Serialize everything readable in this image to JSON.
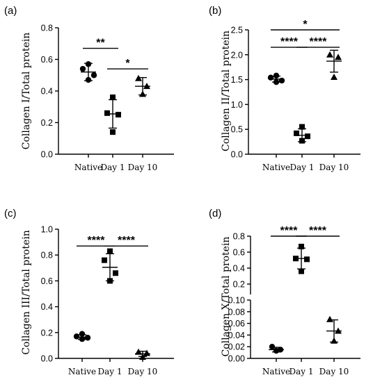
{
  "chart_data": [
    {
      "type": "scatter",
      "panel_label": "(a)",
      "ylabel": "Collagen I/Total protein",
      "categories": [
        "Native",
        "Day 1",
        "Day 10"
      ],
      "ylim": [
        0,
        0.8
      ],
      "yticks": [
        "0.0",
        "0.2",
        "0.4",
        "0.6",
        "0.8"
      ],
      "series": [
        {
          "category": "Native",
          "marker": "circle",
          "points": [
            0.57,
            0.54,
            0.5,
            0.47
          ],
          "mean": 0.52,
          "sd": 0.055
        },
        {
          "category": "Day 1",
          "marker": "square",
          "points": [
            0.36,
            0.26,
            0.25,
            0.14
          ],
          "mean": 0.255,
          "sd": 0.09
        },
        {
          "category": "Day 10",
          "marker": "triangle",
          "points": [
            0.48,
            0.43,
            0.38
          ],
          "mean": 0.43,
          "sd": 0.055
        }
      ],
      "significance": [
        {
          "from": "Native",
          "to": "Day 1",
          "label": "**",
          "y": 0.67
        },
        {
          "from": "Day 1",
          "to": "Day 10",
          "label": "*",
          "y": 0.54
        }
      ]
    },
    {
      "type": "scatter",
      "panel_label": "(b)",
      "ylabel": "Collagen II/Total protein",
      "categories": [
        "Native",
        "Day 1",
        "Day 10"
      ],
      "ylim": [
        0,
        2.5
      ],
      "yticks": [
        "0.0",
        "0.5",
        "1.0",
        "1.5",
        "2.0",
        "2.5"
      ],
      "series": [
        {
          "category": "Native",
          "marker": "circle",
          "points": [
            1.58,
            1.54,
            1.48,
            1.45
          ],
          "mean": 1.51,
          "sd": 0.06
        },
        {
          "category": "Day 1",
          "marker": "square",
          "points": [
            0.55,
            0.42,
            0.36,
            0.27
          ],
          "mean": 0.38,
          "sd": 0.13
        },
        {
          "category": "Day 10",
          "marker": "triangle",
          "points": [
            2.0,
            1.95,
            1.55
          ],
          "mean": 1.87,
          "sd": 0.22
        }
      ],
      "significance": [
        {
          "from": "Native",
          "to": "Day 10",
          "label": "*",
          "y": 2.5
        },
        {
          "from": "Native",
          "to": "Day 1",
          "label": "****",
          "y": 2.15
        },
        {
          "from": "Day 1",
          "to": "Day 10",
          "label": "****",
          "y": 2.15
        }
      ]
    },
    {
      "type": "scatter",
      "panel_label": "(c)",
      "ylabel": "Collagen III/Total protein",
      "categories": [
        "Native",
        "Day 1",
        "Day 10"
      ],
      "ylim": [
        0,
        1.0
      ],
      "yticks": [
        "0.0",
        "0.2",
        "0.4",
        "0.6",
        "0.8",
        "1.0"
      ],
      "series": [
        {
          "category": "Native",
          "marker": "circle",
          "points": [
            0.19,
            0.17,
            0.16,
            0.15
          ],
          "mean": 0.165,
          "sd": 0.018
        },
        {
          "category": "Day 1",
          "marker": "square",
          "points": [
            0.83,
            0.76,
            0.66,
            0.6
          ],
          "mean": 0.705,
          "sd": 0.105
        },
        {
          "category": "Day 10",
          "marker": "triangle",
          "points": [
            0.05,
            0.04,
            0.01
          ],
          "mean": 0.035,
          "sd": 0.02
        }
      ],
      "significance": [
        {
          "from": "Native",
          "to": "Day 1",
          "label": "****",
          "y": 0.87
        },
        {
          "from": "Day 1",
          "to": "Day 10",
          "label": "****",
          "y": 0.87
        }
      ]
    },
    {
      "type": "scatter",
      "panel_label": "(d)",
      "ylabel": "Collagen X/Total protein",
      "categories": [
        "Native",
        "Day 1",
        "Day 10"
      ],
      "broken_axis": true,
      "ylim_lower": [
        0,
        0.1
      ],
      "ylim_upper": [
        0.2,
        0.8
      ],
      "yticks_lower": [
        "0.00",
        "0.02",
        "0.04",
        "0.06",
        "0.08",
        "0.10"
      ],
      "yticks_upper": [
        "0.2",
        "0.4",
        "0.6",
        "0.8"
      ],
      "series": [
        {
          "category": "Native",
          "marker": "circle",
          "points": [
            0.02,
            0.015,
            0.013
          ],
          "mean": 0.015,
          "sd": 0.004
        },
        {
          "category": "Day 1",
          "marker": "square",
          "points": [
            0.67,
            0.52,
            0.51,
            0.36
          ],
          "mean": 0.52,
          "sd": 0.13
        },
        {
          "category": "Day 10",
          "marker": "triangle",
          "points": [
            0.067,
            0.047,
            0.03
          ],
          "mean": 0.047,
          "sd": 0.019
        }
      ],
      "significance": [
        {
          "from": "Native",
          "to": "Day 1",
          "label": "****",
          "y": 0.8
        },
        {
          "from": "Day 1",
          "to": "Day 10",
          "label": "****",
          "y": 0.8
        }
      ]
    }
  ]
}
